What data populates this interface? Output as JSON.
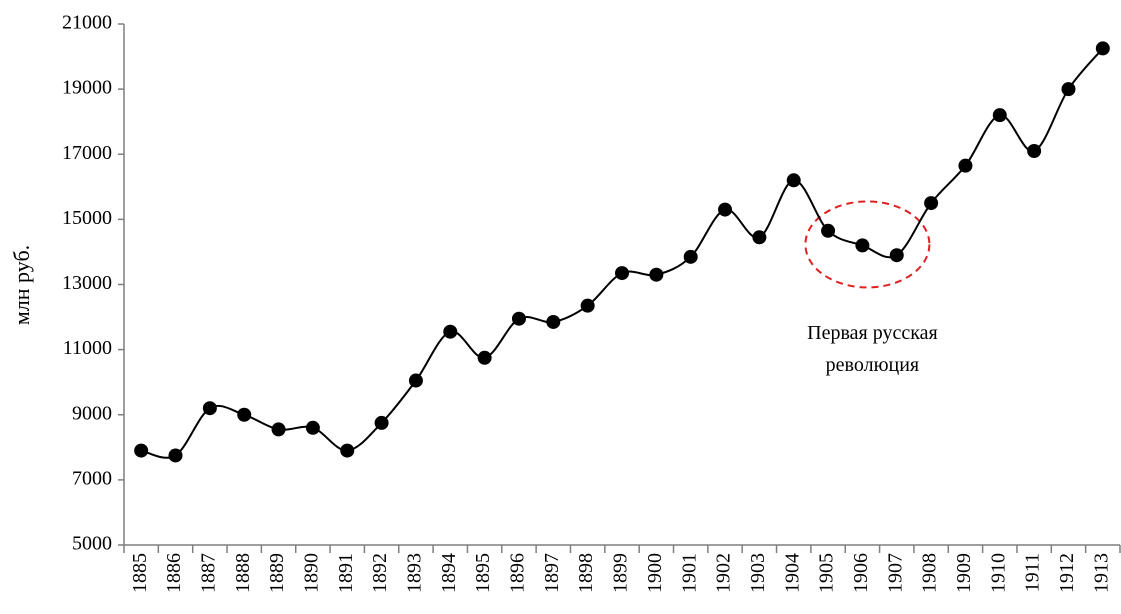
{
  "chart_data": {
    "type": "line",
    "y_label": "млн руб.",
    "annotation": [
      "Первая русская",
      "революция"
    ],
    "categories": [
      "1885",
      "1886",
      "1887",
      "1888",
      "1889",
      "1890",
      "1891",
      "1892",
      "1893",
      "1894",
      "1895",
      "1896",
      "1897",
      "1898",
      "1899",
      "1900",
      "1901",
      "1902",
      "1903",
      "1904",
      "1905",
      "1906",
      "1907",
      "1908",
      "1909",
      "1910",
      "1911",
      "1912",
      "1913"
    ],
    "series": [
      {
        "name": "",
        "color": "#000000",
        "values": [
          7900,
          7750,
          9200,
          9000,
          8550,
          8600,
          7900,
          8750,
          10050,
          11550,
          10750,
          11950,
          11850,
          12350,
          13350,
          13300,
          13850,
          15300,
          14450,
          16200,
          14650,
          14200,
          13900,
          15500,
          16650,
          18200,
          17100,
          19000,
          20250
        ]
      }
    ],
    "ylim": [
      5000,
      21000
    ],
    "yticks": [
      5000,
      7000,
      9000,
      11000,
      13000,
      15000,
      17000,
      19000,
      21000
    ],
    "smooth": true,
    "markers": true
  }
}
